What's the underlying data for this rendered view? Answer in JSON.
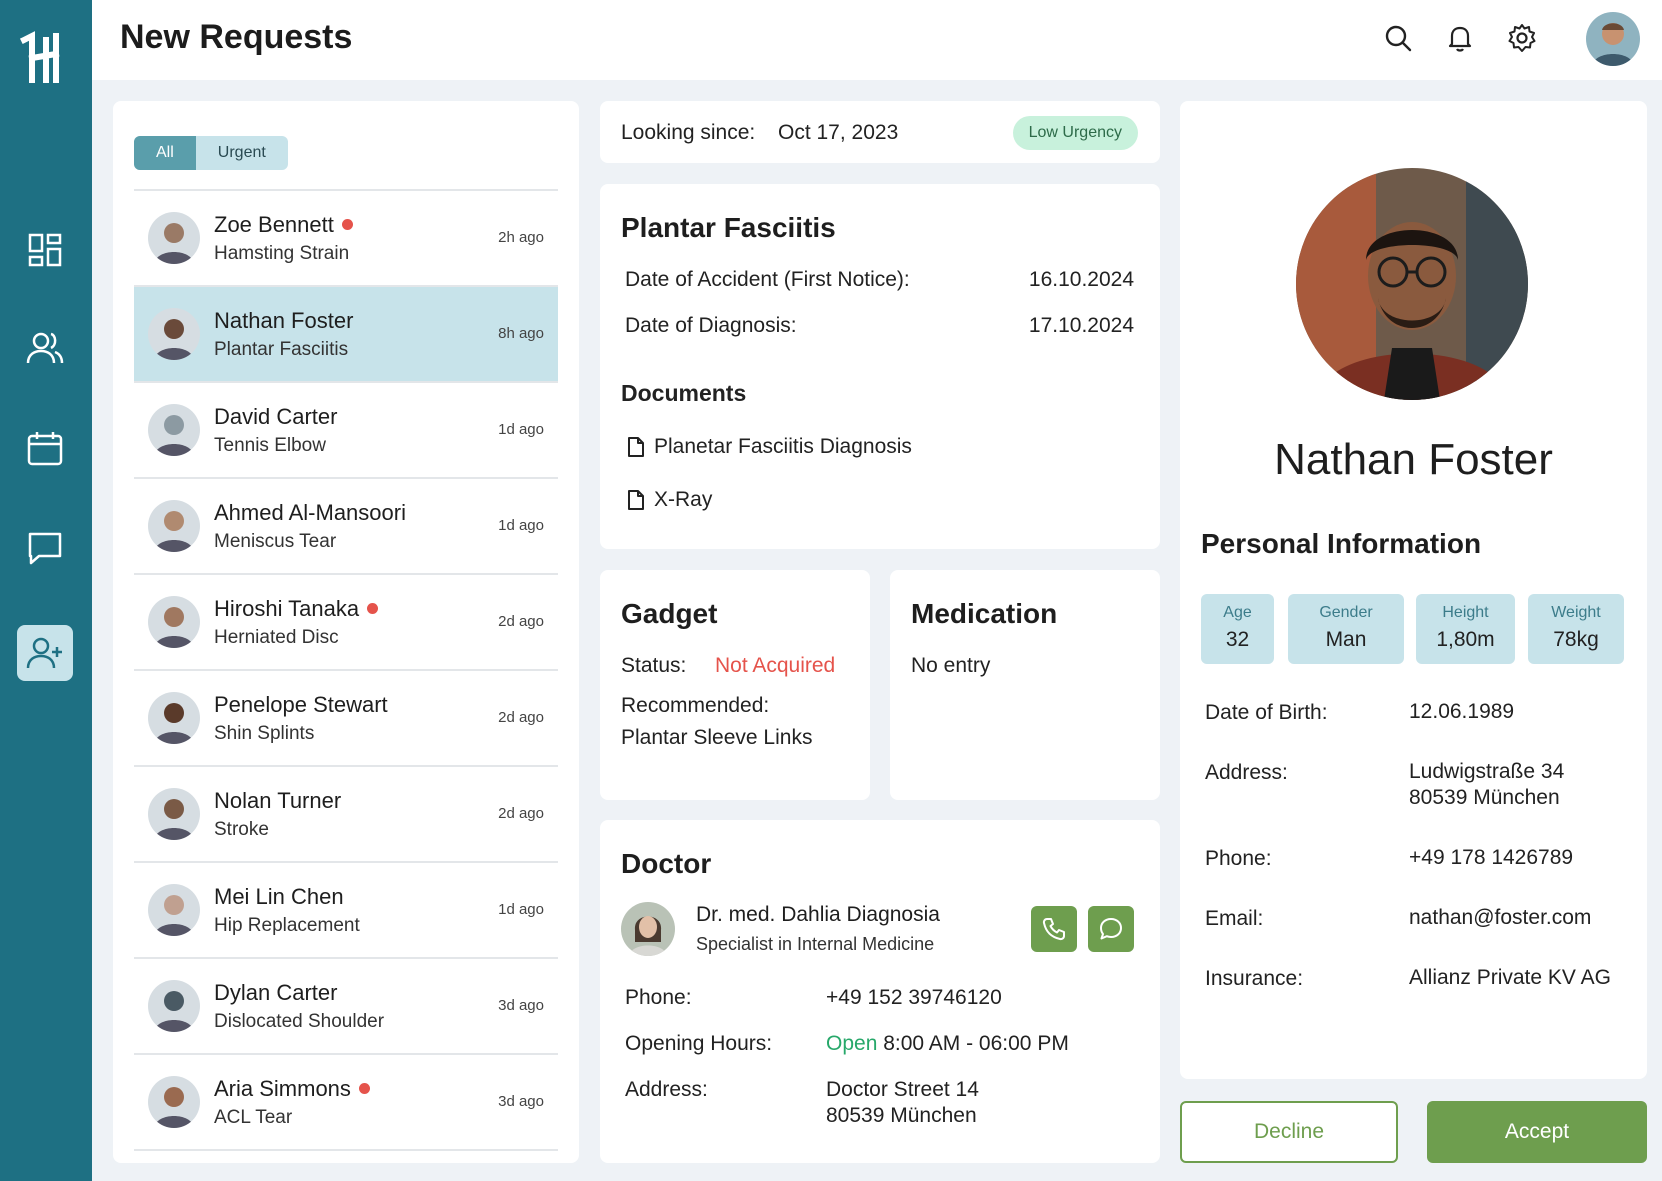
{
  "header": {
    "title": "New Requests",
    "icons": [
      "search-icon",
      "bell-icon",
      "gear-icon"
    ]
  },
  "sidebar": {
    "logo": "H",
    "items": [
      {
        "icon": "dashboard-icon",
        "active": false
      },
      {
        "icon": "users-icon",
        "active": false
      },
      {
        "icon": "calendar-icon",
        "active": false
      },
      {
        "icon": "chat-icon",
        "active": false
      },
      {
        "icon": "add-user-icon",
        "active": true
      }
    ]
  },
  "filters": {
    "all": "All",
    "urgent": "Urgent",
    "selected": "All"
  },
  "requests": [
    {
      "name": "Zoe Bennett",
      "condition": "Hamsting Strain",
      "time": "2h ago",
      "urgent": true,
      "selected": false
    },
    {
      "name": "Nathan Foster",
      "condition": "Plantar Fasciitis",
      "time": "8h ago",
      "urgent": false,
      "selected": true
    },
    {
      "name": "David Carter",
      "condition": "Tennis Elbow",
      "time": "1d ago",
      "urgent": false,
      "selected": false
    },
    {
      "name": "Ahmed Al-Mansoori",
      "condition": "Meniscus Tear",
      "time": "1d ago",
      "urgent": false,
      "selected": false
    },
    {
      "name": "Hiroshi Tanaka",
      "condition": "Herniated Disc",
      "time": "2d ago",
      "urgent": true,
      "selected": false
    },
    {
      "name": "Penelope Stewart",
      "condition": "Shin Splints",
      "time": "2d ago",
      "urgent": false,
      "selected": false
    },
    {
      "name": "Nolan Turner",
      "condition": "Stroke",
      "time": "2d ago",
      "urgent": false,
      "selected": false
    },
    {
      "name": "Mei Lin Chen",
      "condition": "Hip Replacement",
      "time": "1d ago",
      "urgent": false,
      "selected": false
    },
    {
      "name": "Dylan Carter",
      "condition": "Dislocated Shoulder",
      "time": "3d ago",
      "urgent": false,
      "selected": false
    },
    {
      "name": "Aria Simmons",
      "condition": "ACL Tear",
      "time": "3d ago",
      "urgent": true,
      "selected": false
    }
  ],
  "looking": {
    "label": "Looking since:",
    "date": "Oct 17, 2023",
    "urgency": "Low Urgency"
  },
  "diagnosis": {
    "title": "Plantar Fasciitis",
    "accident_label": "Date of Accident (First Notice):",
    "accident_value": "16.10.2024",
    "diagnosis_label": "Date of Diagnosis:",
    "diagnosis_value": "17.10.2024",
    "documents_title": "Documents",
    "documents": [
      "Planetar Fasciitis Diagnosis",
      "X-Ray"
    ]
  },
  "gadget": {
    "title": "Gadget",
    "status_label": "Status:",
    "status_value": "Not Acquired",
    "recommended_label": "Recommended:",
    "recommended_value": "Plantar Sleeve Links"
  },
  "medication": {
    "title": "Medication",
    "value": "No entry"
  },
  "doctor": {
    "title": "Doctor",
    "name": "Dr. med. Dahlia Diagnosia",
    "specialty": "Specialist in Internal Medicine",
    "phone_label": "Phone:",
    "phone_value": "+49 152 39746120",
    "hours_label": "Opening Hours:",
    "hours_status": "Open",
    "hours_value": "8:00 AM - 06:00 PM",
    "address_label": "Address:",
    "address_line1": "Doctor Street 14",
    "address_line2": "80539 München"
  },
  "profile": {
    "name": "Nathan Foster",
    "section_title": "Personal Information",
    "stats": [
      {
        "label": "Age",
        "value": "32"
      },
      {
        "label": "Gender",
        "value": "Man"
      },
      {
        "label": "Height",
        "value": "1,80m"
      },
      {
        "label": "Weight",
        "value": "78kg"
      }
    ],
    "dob_label": "Date of Birth:",
    "dob_value": "12.06.1989",
    "address_label": "Address:",
    "address_line1": "Ludwigstraße 34",
    "address_line2": "80539 München",
    "phone_label": "Phone:",
    "phone_value": "+49 178 1426789",
    "email_label": "Email:",
    "email_value": "nathan@foster.com",
    "insurance_label": "Insurance:",
    "insurance_value": "Allianz Private KV AG"
  },
  "actions": {
    "decline": "Decline",
    "accept": "Accept"
  }
}
